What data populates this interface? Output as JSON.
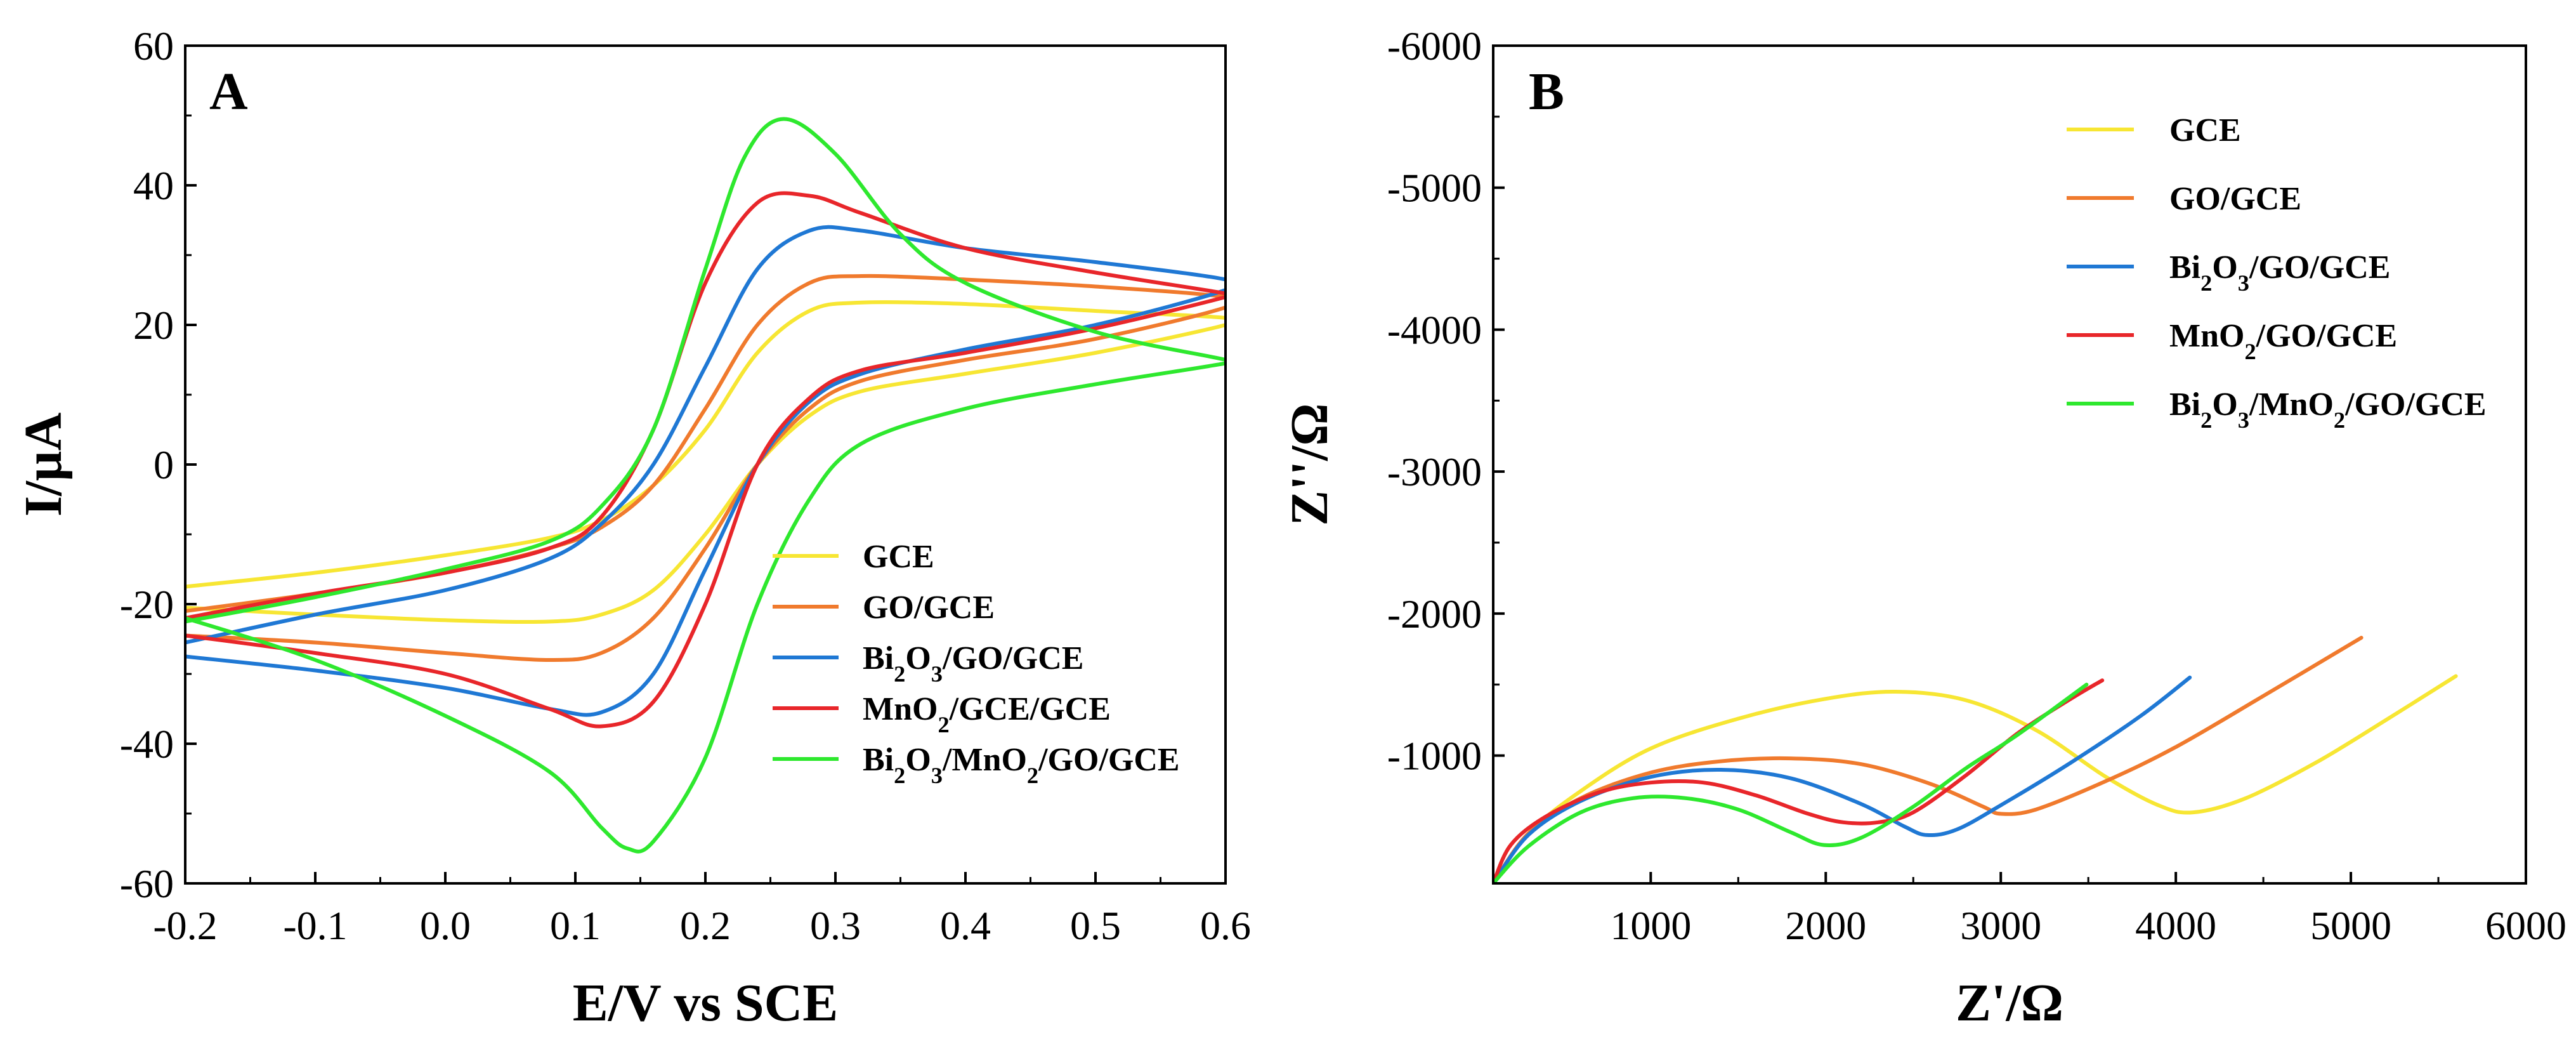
{
  "chart_data": [
    {
      "type": "line",
      "panel_label": "A",
      "xlabel": "E/V vs SCE",
      "ylabel": "I/μA",
      "xlim": [
        -0.2,
        0.6
      ],
      "ylim": [
        -60,
        60
      ],
      "xticks": [
        -0.2,
        -0.1,
        0.0,
        0.1,
        0.2,
        0.3,
        0.4,
        0.5,
        0.6
      ],
      "xtick_labels": [
        "-0.2",
        "-0.1",
        "0.0",
        "0.1",
        "0.2",
        "0.3",
        "0.4",
        "0.5",
        "0.6"
      ],
      "yticks": [
        -60,
        -40,
        -20,
        0,
        20,
        40,
        60
      ],
      "ytick_labels": [
        "-60",
        "-40",
        "-20",
        "0",
        "20",
        "40",
        "60"
      ],
      "legend_position": "bottom-right",
      "series": [
        {
          "name": "GCE",
          "name_parts": [
            [
              "GCE",
              ""
            ]
          ],
          "color": "#f7e633",
          "x": [
            -0.2,
            -0.1,
            0.0,
            0.08,
            0.12,
            0.16,
            0.2,
            0.24,
            0.28,
            0.32,
            0.4,
            0.5,
            0.6,
            0.6,
            0.5,
            0.4,
            0.32,
            0.28,
            0.24,
            0.2,
            0.16,
            0.12,
            0.08,
            0.0,
            -0.1,
            -0.2
          ],
          "values": [
            -17.5,
            -15.5,
            -13.0,
            -10.5,
            -8.0,
            -3.0,
            5.0,
            16.0,
            22.0,
            23.2,
            23.0,
            22.0,
            21.0,
            20.0,
            16.0,
            13.0,
            10.5,
            7.0,
            0.0,
            -10.0,
            -18.0,
            -21.5,
            -22.5,
            -22.3,
            -21.5,
            -20.5
          ]
        },
        {
          "name": "GO/GCE",
          "name_parts": [
            [
              "GO/GCE",
              ""
            ]
          ],
          "color": "#f07a2d",
          "x": [
            -0.2,
            -0.1,
            0.0,
            0.08,
            0.12,
            0.16,
            0.2,
            0.24,
            0.28,
            0.32,
            0.4,
            0.5,
            0.6,
            0.6,
            0.5,
            0.4,
            0.32,
            0.28,
            0.24,
            0.2,
            0.16,
            0.12,
            0.08,
            0.0,
            -0.1,
            -0.2
          ],
          "values": [
            -21.0,
            -18.5,
            -15.5,
            -12.0,
            -9.0,
            -3.0,
            8.0,
            20.0,
            26.0,
            27.0,
            26.5,
            25.5,
            24.0,
            22.5,
            18.0,
            15.0,
            12.0,
            8.0,
            0.0,
            -12.0,
            -22.0,
            -27.0,
            -28.0,
            -27.0,
            -25.5,
            -24.5
          ]
        },
        {
          "name": "Bi2O3/GO/GCE",
          "name_parts": [
            [
              "Bi",
              ""
            ],
            [
              "2",
              "sub"
            ],
            [
              "O",
              ""
            ],
            [
              "3",
              "sub"
            ],
            [
              "/GO/GCE",
              ""
            ]
          ],
          "color": "#1f78d4",
          "x": [
            -0.2,
            -0.1,
            0.0,
            0.08,
            0.12,
            0.16,
            0.2,
            0.24,
            0.28,
            0.32,
            0.4,
            0.5,
            0.6,
            0.6,
            0.5,
            0.4,
            0.32,
            0.28,
            0.24,
            0.2,
            0.16,
            0.12,
            0.08,
            0.0,
            -0.1,
            -0.2
          ],
          "values": [
            -25.5,
            -21.5,
            -18.0,
            -13.5,
            -8.5,
            0.0,
            14.0,
            28.0,
            33.5,
            33.5,
            31.0,
            29.0,
            26.5,
            25.0,
            20.0,
            16.5,
            13.0,
            9.0,
            0.0,
            -15.0,
            -30.0,
            -35.5,
            -35.0,
            -32.0,
            -29.5,
            -27.5
          ]
        },
        {
          "name": "MnO2/GCE/GCE",
          "name_parts": [
            [
              "MnO",
              ""
            ],
            [
              "2",
              "sub"
            ],
            [
              "/GCE/GCE",
              ""
            ]
          ],
          "color": "#e8262a",
          "x": [
            -0.2,
            -0.1,
            0.0,
            0.08,
            0.12,
            0.16,
            0.2,
            0.24,
            0.28,
            0.32,
            0.4,
            0.5,
            0.6,
            0.6,
            0.5,
            0.4,
            0.32,
            0.28,
            0.24,
            0.2,
            0.16,
            0.12,
            0.08,
            0.0,
            -0.1,
            -0.2
          ],
          "values": [
            -22.0,
            -18.5,
            -15.5,
            -12.0,
            -7.5,
            5.0,
            26.0,
            37.5,
            38.5,
            36.0,
            31.0,
            27.5,
            24.5,
            24.0,
            19.5,
            16.0,
            13.5,
            9.5,
            0.0,
            -20.0,
            -34.0,
            -37.5,
            -35.0,
            -30.0,
            -27.0,
            -24.5
          ]
        },
        {
          "name": "Bi2O3/MnO2/GO/GCE",
          "name_parts": [
            [
              "Bi",
              ""
            ],
            [
              "2",
              "sub"
            ],
            [
              "O",
              ""
            ],
            [
              "3",
              "sub"
            ],
            [
              "/MnO",
              ""
            ],
            [
              "2",
              "sub"
            ],
            [
              "/GO/GCE",
              ""
            ]
          ],
          "color": "#2ee82e",
          "x": [
            -0.2,
            -0.1,
            0.0,
            0.08,
            0.12,
            0.16,
            0.2,
            0.23,
            0.26,
            0.3,
            0.35,
            0.4,
            0.5,
            0.6,
            0.6,
            0.5,
            0.4,
            0.32,
            0.28,
            0.24,
            0.2,
            0.16,
            0.14,
            0.12,
            0.08,
            0.0,
            -0.1,
            -0.2
          ],
          "values": [
            -22.5,
            -19.0,
            -15.0,
            -11.0,
            -6.0,
            5.0,
            28.0,
            44.0,
            49.5,
            44.5,
            33.0,
            26.0,
            19.0,
            15.0,
            14.5,
            11.5,
            8.0,
            3.0,
            -5.0,
            -20.0,
            -42.0,
            -54.0,
            -55.0,
            -52.0,
            -44.0,
            -36.0,
            -28.0,
            -22.0
          ]
        }
      ]
    },
    {
      "type": "line",
      "panel_label": "B",
      "xlabel": "Z'/Ω",
      "ylabel": "Z''/Ω",
      "xlim": [
        100,
        6000
      ],
      "ylim": [
        -100,
        -6000
      ],
      "xticks": [
        1000,
        2000,
        3000,
        4000,
        5000,
        6000
      ],
      "xtick_labels": [
        "1000",
        "2000",
        "3000",
        "4000",
        "5000",
        "6000"
      ],
      "yticks": [
        -1000,
        -2000,
        -3000,
        -4000,
        -5000,
        -6000
      ],
      "ytick_labels": [
        "-1000",
        "-2000",
        "-3000",
        "-4000",
        "-5000",
        "-6000"
      ],
      "legend_position": "top-right",
      "series": [
        {
          "name": "GCE",
          "name_parts": [
            [
              "GCE",
              ""
            ]
          ],
          "color": "#f7e633",
          "x": [
            100,
            300,
            600,
            1000,
            1500,
            2000,
            2400,
            2800,
            3200,
            3600,
            3900,
            4100,
            4400,
            4800,
            5200,
            5600
          ],
          "values": [
            -100,
            -450,
            -750,
            -1050,
            -1260,
            -1400,
            -1450,
            -1390,
            -1180,
            -850,
            -650,
            -600,
            -700,
            -950,
            -1250,
            -1560
          ]
        },
        {
          "name": "GO/GCE",
          "name_parts": [
            [
              "GO/GCE",
              ""
            ]
          ],
          "color": "#f07a2d",
          "x": [
            100,
            300,
            600,
            1000,
            1400,
            1800,
            2200,
            2600,
            2900,
            3000,
            3200,
            3600,
            4000,
            4500,
            5060
          ],
          "values": [
            -100,
            -450,
            -700,
            -880,
            -960,
            -980,
            -940,
            -800,
            -640,
            -590,
            -620,
            -820,
            -1060,
            -1420,
            -1830
          ]
        },
        {
          "name": "Bi2O3/GO/GCE",
          "name_parts": [
            [
              "Bi",
              ""
            ],
            [
              "2",
              "sub"
            ],
            [
              "O",
              ""
            ],
            [
              "3",
              "sub"
            ],
            [
              "/GO/GCE",
              ""
            ]
          ],
          "color": "#1f78d4",
          "x": [
            100,
            300,
            600,
            1000,
            1400,
            1800,
            2200,
            2450,
            2580,
            2750,
            3000,
            3400,
            3800,
            4080
          ],
          "values": [
            -100,
            -440,
            -680,
            -850,
            -900,
            -840,
            -660,
            -500,
            -440,
            -480,
            -650,
            -950,
            -1280,
            -1550
          ]
        },
        {
          "name": "MnO2/GO/GCE",
          "name_parts": [
            [
              "MnO",
              ""
            ],
            [
              "2",
              "sub"
            ],
            [
              "/GO/GCE",
              ""
            ]
          ],
          "color": "#e8262a",
          "x": [
            100,
            200,
            400,
            700,
            1000,
            1300,
            1600,
            1900,
            2100,
            2300,
            2500,
            2800,
            3100,
            3400,
            3580
          ],
          "values": [
            -100,
            -370,
            -570,
            -740,
            -810,
            -810,
            -720,
            -590,
            -530,
            -530,
            -600,
            -860,
            -1160,
            -1400,
            -1530
          ]
        },
        {
          "name": "Bi2O3/MnO2/GO/GCE",
          "name_parts": [
            [
              "Bi",
              ""
            ],
            [
              "2",
              "sub"
            ],
            [
              "O",
              ""
            ],
            [
              "3",
              "sub"
            ],
            [
              "/MnO",
              ""
            ],
            [
              "2",
              "sub"
            ],
            [
              "/GO/GCE",
              ""
            ]
          ],
          "color": "#2ee82e",
          "x": [
            100,
            300,
            600,
            900,
            1200,
            1500,
            1800,
            1990,
            2200,
            2500,
            2800,
            3100,
            3490
          ],
          "values": [
            -100,
            -360,
            -600,
            -700,
            -700,
            -620,
            -460,
            -370,
            -420,
            -640,
            -910,
            -1150,
            -1500
          ]
        }
      ]
    }
  ]
}
